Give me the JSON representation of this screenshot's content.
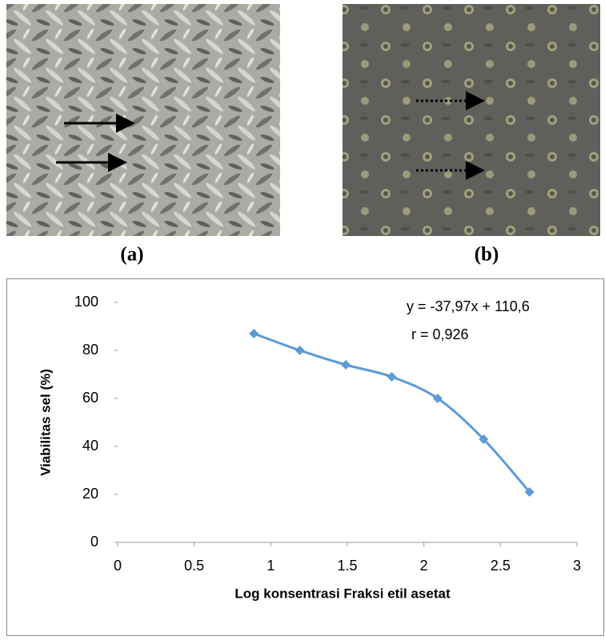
{
  "panels": {
    "a": "(a)",
    "b": "(b)"
  },
  "chart_data": {
    "type": "line",
    "x": [
      0.89,
      1.19,
      1.49,
      1.79,
      2.09,
      2.39,
      2.69
    ],
    "values": [
      87,
      80,
      74,
      69,
      60,
      43,
      21
    ],
    "color": "#5b9bd5",
    "xlim": [
      0,
      3
    ],
    "xticks": [
      0,
      0.5,
      1,
      1.5,
      2,
      2.5,
      3
    ],
    "ylim": [
      0,
      100
    ],
    "yticks": [
      0,
      20,
      40,
      60,
      80,
      100
    ],
    "x_label": "Log konsentrasi Fraksi  etil asetat",
    "y_label": "Viabilitas sel (%)",
    "annotations": [
      "y = -37,97x + 110,6",
      "r = 0,926"
    ],
    "smooth": true
  }
}
